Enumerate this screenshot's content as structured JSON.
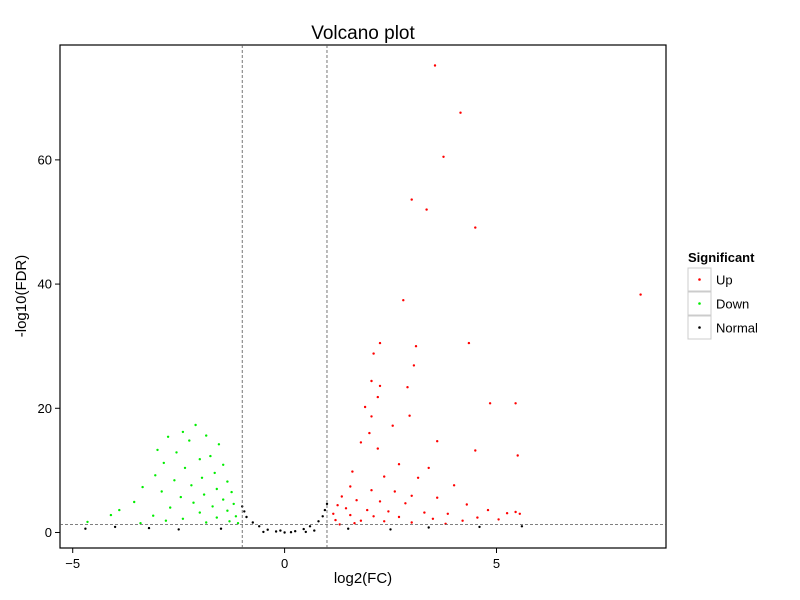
{
  "chart_data": {
    "type": "scatter",
    "title": "Volcano plot",
    "xlabel": "log2(FC)",
    "ylabel": "-log10(FDR)",
    "xlim": [
      -5.3,
      9.0
    ],
    "ylim": [
      -2.5,
      78.5
    ],
    "x_ticks": [
      -5,
      0,
      5
    ],
    "y_ticks": [
      0,
      20,
      40,
      60
    ],
    "grid": false,
    "fc_threshold_lines": [
      -1,
      1
    ],
    "fdr_threshold_line": 1.3,
    "legend": {
      "title": "Significant",
      "position": "right",
      "entries": [
        {
          "label": "Up",
          "color": "#ff0000"
        },
        {
          "label": "Down",
          "color": "#00ee00"
        },
        {
          "label": "Normal",
          "color": "#000000"
        }
      ]
    },
    "series": [
      {
        "name": "Up",
        "color": "#ff0000",
        "points": [
          [
            3.55,
            75.2
          ],
          [
            4.15,
            67.6
          ],
          [
            3.75,
            60.5
          ],
          [
            3.0,
            53.6
          ],
          [
            3.35,
            52.0
          ],
          [
            4.5,
            49.1
          ],
          [
            8.4,
            38.3
          ],
          [
            2.8,
            37.4
          ],
          [
            4.35,
            30.5
          ],
          [
            2.25,
            30.5
          ],
          [
            3.1,
            30.0
          ],
          [
            2.1,
            28.8
          ],
          [
            3.05,
            26.9
          ],
          [
            2.05,
            24.4
          ],
          [
            2.25,
            23.6
          ],
          [
            2.9,
            23.4
          ],
          [
            2.2,
            21.8
          ],
          [
            4.85,
            20.8
          ],
          [
            5.45,
            20.8
          ],
          [
            1.9,
            20.2
          ],
          [
            2.95,
            18.8
          ],
          [
            2.05,
            18.7
          ],
          [
            2.55,
            17.2
          ],
          [
            2.0,
            16.0
          ],
          [
            3.6,
            14.7
          ],
          [
            2.2,
            13.5
          ],
          [
            4.5,
            13.2
          ],
          [
            5.5,
            12.4
          ],
          [
            1.8,
            14.5
          ],
          [
            2.7,
            11.0
          ],
          [
            3.4,
            10.4
          ],
          [
            1.6,
            9.8
          ],
          [
            2.35,
            9.0
          ],
          [
            3.15,
            8.8
          ],
          [
            4.0,
            7.6
          ],
          [
            1.55,
            7.4
          ],
          [
            2.05,
            6.8
          ],
          [
            2.6,
            6.6
          ],
          [
            3.0,
            5.9
          ],
          [
            3.6,
            5.6
          ],
          [
            1.35,
            5.8
          ],
          [
            1.7,
            5.2
          ],
          [
            2.25,
            5.0
          ],
          [
            2.85,
            4.7
          ],
          [
            4.3,
            4.5
          ],
          [
            4.8,
            3.6
          ],
          [
            5.25,
            3.1
          ],
          [
            5.45,
            3.3
          ],
          [
            5.55,
            3.0
          ],
          [
            1.25,
            4.4
          ],
          [
            1.45,
            3.9
          ],
          [
            1.95,
            3.6
          ],
          [
            2.45,
            3.4
          ],
          [
            3.3,
            3.2
          ],
          [
            3.85,
            3.0
          ],
          [
            4.55,
            2.4
          ],
          [
            5.05,
            2.1
          ],
          [
            1.15,
            3.0
          ],
          [
            1.55,
            2.8
          ],
          [
            2.1,
            2.6
          ],
          [
            2.7,
            2.5
          ],
          [
            3.5,
            2.2
          ],
          [
            4.2,
            1.9
          ],
          [
            1.2,
            2.0
          ],
          [
            1.8,
            1.9
          ],
          [
            2.35,
            1.8
          ],
          [
            3.0,
            1.6
          ],
          [
            3.8,
            1.4
          ],
          [
            1.3,
            1.3
          ],
          [
            1.65,
            1.5
          ]
        ]
      },
      {
        "name": "Down",
        "color": "#00ee00",
        "points": [
          [
            -2.1,
            17.3
          ],
          [
            -2.4,
            16.2
          ],
          [
            -1.85,
            15.6
          ],
          [
            -2.75,
            15.4
          ],
          [
            -2.25,
            14.8
          ],
          [
            -1.55,
            14.2
          ],
          [
            -3.0,
            13.3
          ],
          [
            -2.55,
            12.9
          ],
          [
            -1.75,
            12.3
          ],
          [
            -2.0,
            11.8
          ],
          [
            -2.85,
            11.2
          ],
          [
            -1.45,
            10.9
          ],
          [
            -2.35,
            10.4
          ],
          [
            -1.65,
            9.6
          ],
          [
            -3.05,
            9.2
          ],
          [
            -1.95,
            8.8
          ],
          [
            -2.6,
            8.4
          ],
          [
            -1.35,
            8.2
          ],
          [
            -2.2,
            7.6
          ],
          [
            -3.35,
            7.3
          ],
          [
            -1.6,
            7.0
          ],
          [
            -2.9,
            6.6
          ],
          [
            -1.25,
            6.5
          ],
          [
            -1.9,
            6.1
          ],
          [
            -2.45,
            5.7
          ],
          [
            -1.45,
            5.3
          ],
          [
            -3.55,
            4.9
          ],
          [
            -2.15,
            4.8
          ],
          [
            -1.2,
            4.6
          ],
          [
            -1.7,
            4.2
          ],
          [
            -2.7,
            4.0
          ],
          [
            -3.9,
            3.6
          ],
          [
            -1.35,
            3.5
          ],
          [
            -2.0,
            3.2
          ],
          [
            -4.1,
            2.8
          ],
          [
            -3.1,
            2.7
          ],
          [
            -1.15,
            2.6
          ],
          [
            -1.6,
            2.4
          ],
          [
            -2.4,
            2.2
          ],
          [
            -4.65,
            1.7
          ],
          [
            -1.3,
            1.8
          ],
          [
            -1.85,
            1.6
          ],
          [
            -3.4,
            1.5
          ],
          [
            -1.1,
            1.5
          ],
          [
            -2.8,
            1.9
          ]
        ]
      },
      {
        "name": "Normal",
        "color": "#000000",
        "points": [
          [
            0.0,
            0.0
          ],
          [
            -0.2,
            0.15
          ],
          [
            0.25,
            0.2
          ],
          [
            -0.4,
            0.45
          ],
          [
            0.45,
            0.55
          ],
          [
            -0.6,
            1.0
          ],
          [
            0.6,
            1.0
          ],
          [
            -0.75,
            1.6
          ],
          [
            0.8,
            1.8
          ],
          [
            -0.9,
            2.5
          ],
          [
            0.9,
            2.6
          ],
          [
            -0.95,
            3.4
          ],
          [
            0.95,
            3.6
          ],
          [
            -1.0,
            4.2
          ],
          [
            1.0,
            4.6
          ],
          [
            -0.5,
            0.1
          ],
          [
            0.5,
            0.1
          ],
          [
            -1.5,
            0.6
          ],
          [
            1.5,
            0.6
          ],
          [
            -2.5,
            0.5
          ],
          [
            2.5,
            0.5
          ],
          [
            -3.2,
            0.7
          ],
          [
            3.4,
            0.8
          ],
          [
            -4.0,
            0.9
          ],
          [
            4.6,
            0.9
          ],
          [
            5.6,
            1.0
          ],
          [
            -4.7,
            0.6
          ],
          [
            0.15,
            0.05
          ],
          [
            -0.1,
            0.3
          ],
          [
            0.7,
            0.3
          ]
        ]
      }
    ]
  }
}
